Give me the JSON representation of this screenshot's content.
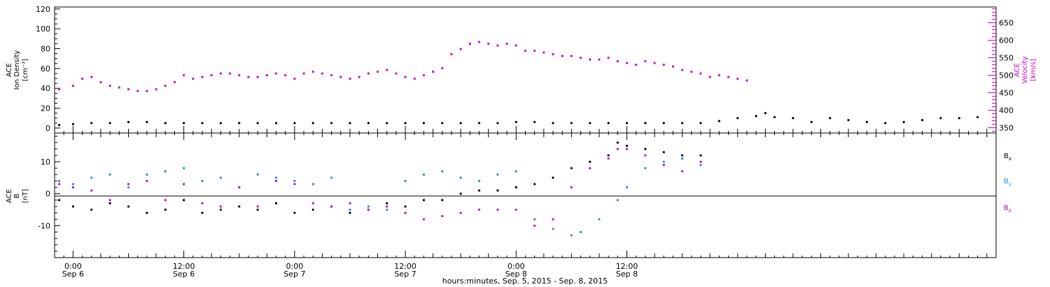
{
  "chart_data": [
    {
      "type": "scatter",
      "panel": "plasma",
      "ylabel_left": [
        "ACE",
        "Ion Density",
        "[cm⁻³]"
      ],
      "ylabel_right": [
        "ACE",
        "Velocity",
        "[km/s]"
      ],
      "left_axis": {
        "range": [
          -5,
          122
        ],
        "ticks": [
          0,
          20,
          40,
          60,
          80,
          100,
          120
        ],
        "color": "#000000"
      },
      "right_axis": {
        "range": [
          335,
          695
        ],
        "ticks": [
          350,
          400,
          450,
          500,
          550,
          600,
          650
        ],
        "color": "#cc00cc"
      },
      "x_range_hours": [
        -2,
        100
      ],
      "series": [
        {
          "axis": "left",
          "color": "#000000",
          "points": [
            [
              -1.5,
              3
            ],
            [
              0,
              4
            ],
            [
              2,
              5
            ],
            [
              4,
              5
            ],
            [
              6,
              6
            ],
            [
              8,
              6
            ],
            [
              10,
              5
            ],
            [
              12,
              5
            ],
            [
              14,
              5
            ],
            [
              16,
              5
            ],
            [
              18,
              5
            ],
            [
              20,
              5
            ],
            [
              22,
              5
            ],
            [
              24,
              5
            ],
            [
              26,
              5
            ],
            [
              28,
              5
            ],
            [
              30,
              5
            ],
            [
              32,
              5
            ],
            [
              34,
              5
            ],
            [
              36,
              5
            ],
            [
              38,
              5
            ],
            [
              40,
              5
            ],
            [
              42,
              5
            ],
            [
              44,
              5
            ],
            [
              46,
              5
            ],
            [
              48,
              6
            ],
            [
              50,
              6
            ],
            [
              52,
              5
            ],
            [
              54,
              5
            ],
            [
              56,
              5
            ],
            [
              58,
              5
            ],
            [
              60,
              5
            ],
            [
              62,
              5
            ],
            [
              64,
              5
            ],
            [
              66,
              5
            ],
            [
              68,
              5
            ],
            [
              70,
              7
            ],
            [
              72,
              10
            ],
            [
              74,
              12
            ],
            [
              75,
              15
            ],
            [
              76,
              11
            ],
            [
              78,
              10
            ],
            [
              80,
              6
            ],
            [
              82,
              10
            ],
            [
              84,
              8
            ],
            [
              86,
              6
            ],
            [
              88,
              5
            ],
            [
              90,
              6
            ],
            [
              92,
              8
            ],
            [
              94,
              10
            ],
            [
              96,
              10
            ],
            [
              98,
              11
            ]
          ]
        },
        {
          "axis": "right",
          "color": "#cc00cc",
          "points": [
            [
              -1.5,
              460
            ],
            [
              0,
              470
            ],
            [
              1,
              490
            ],
            [
              2,
              495
            ],
            [
              3,
              480
            ],
            [
              4,
              470
            ],
            [
              5,
              465
            ],
            [
              6,
              460
            ],
            [
              7,
              455
            ],
            [
              8,
              455
            ],
            [
              9,
              460
            ],
            [
              10,
              470
            ],
            [
              11,
              480
            ],
            [
              12,
              500
            ],
            [
              13,
              490
            ],
            [
              14,
              495
            ],
            [
              15,
              500
            ],
            [
              16,
              505
            ],
            [
              17,
              505
            ],
            [
              18,
              500
            ],
            [
              19,
              495
            ],
            [
              20,
              495
            ],
            [
              21,
              500
            ],
            [
              22,
              505
            ],
            [
              23,
              500
            ],
            [
              24,
              490
            ],
            [
              25,
              505
            ],
            [
              26,
              510
            ],
            [
              27,
              505
            ],
            [
              28,
              500
            ],
            [
              29,
              495
            ],
            [
              30,
              490
            ],
            [
              31,
              495
            ],
            [
              32,
              505
            ],
            [
              33,
              510
            ],
            [
              34,
              515
            ],
            [
              35,
              505
            ],
            [
              36,
              495
            ],
            [
              37,
              490
            ],
            [
              38,
              500
            ],
            [
              39,
              510
            ],
            [
              40,
              520
            ],
            [
              41,
              560
            ],
            [
              42,
              575
            ],
            [
              43,
              590
            ],
            [
              44,
              595
            ],
            [
              45,
              590
            ],
            [
              46,
              585
            ],
            [
              47,
              590
            ],
            [
              48,
              585
            ],
            [
              49,
              570
            ],
            [
              50,
              570
            ],
            [
              51,
              565
            ],
            [
              52,
              560
            ],
            [
              53,
              555
            ],
            [
              54,
              555
            ],
            [
              55,
              550
            ],
            [
              56,
              545
            ],
            [
              57,
              545
            ],
            [
              58,
              550
            ],
            [
              59,
              540
            ],
            [
              60,
              535
            ],
            [
              61,
              530
            ],
            [
              62,
              540
            ],
            [
              63,
              535
            ],
            [
              64,
              530
            ],
            [
              65,
              525
            ],
            [
              66,
              515
            ],
            [
              67,
              510
            ],
            [
              68,
              505
            ],
            [
              69,
              495
            ],
            [
              70,
              500
            ],
            [
              71,
              495
            ],
            [
              72,
              490
            ],
            [
              73,
              485
            ]
          ]
        }
      ]
    },
    {
      "type": "scatter",
      "panel": "magnetic-field",
      "ylabel_left": [
        "ACE",
        "B",
        "[nT]"
      ],
      "left_axis": {
        "range": [
          -20,
          19
        ],
        "ticks": [
          -10,
          0,
          10
        ],
        "color": "#000000"
      },
      "x_range_hours": [
        -2,
        100
      ],
      "x_ticks": [
        {
          "hour": 0,
          "time": "0:00",
          "date": "Sep 6"
        },
        {
          "hour": 12,
          "time": "12:00",
          "date": "Sep 6"
        },
        {
          "hour": 24,
          "time": "0:00",
          "date": "Sep 7"
        },
        {
          "hour": 36,
          "time": "12:00",
          "date": "Sep 7"
        },
        {
          "hour": 48,
          "time": "0:00",
          "date": "Sep 8"
        },
        {
          "hour": 60,
          "time": "12:00",
          "date": "Sep 8"
        }
      ],
      "xlabel": "hours:minutes, Sep.  5, 2015 - Sep.  8, 2015",
      "legend": [
        {
          "label": "B",
          "sub": "x",
          "color": "#000000"
        },
        {
          "label": "B",
          "sub": "y",
          "color": "#1a8ce6"
        },
        {
          "label": "B",
          "sub": "z",
          "color": "#cc00cc"
        }
      ],
      "series": [
        {
          "name": "Bx",
          "color": "#000000",
          "points": [
            [
              -1.5,
              -2
            ],
            [
              0,
              -4
            ],
            [
              2,
              -5
            ],
            [
              4,
              -3
            ],
            [
              6,
              -4
            ],
            [
              8,
              -6
            ],
            [
              10,
              -5
            ],
            [
              12,
              -2
            ],
            [
              14,
              -6
            ],
            [
              16,
              -5
            ],
            [
              18,
              -4
            ],
            [
              20,
              -5
            ],
            [
              22,
              -3
            ],
            [
              24,
              -6
            ],
            [
              26,
              -5
            ],
            [
              28,
              -4
            ],
            [
              30,
              -6
            ],
            [
              32,
              -5
            ],
            [
              34,
              -3
            ],
            [
              36,
              -4
            ],
            [
              38,
              -2
            ],
            [
              40,
              -2
            ],
            [
              42,
              0
            ],
            [
              44,
              1
            ],
            [
              46,
              1
            ],
            [
              48,
              2
            ],
            [
              50,
              3
            ],
            [
              52,
              5
            ],
            [
              54,
              8
            ],
            [
              56,
              10
            ],
            [
              58,
              12
            ],
            [
              59,
              16
            ],
            [
              60,
              15
            ],
            [
              62,
              14
            ],
            [
              64,
              13
            ],
            [
              66,
              12
            ],
            [
              68,
              12
            ]
          ]
        },
        {
          "name": "By",
          "color": "#1a8ce6",
          "points": [
            [
              -1.5,
              4
            ],
            [
              0,
              3
            ],
            [
              2,
              5
            ],
            [
              4,
              6
            ],
            [
              6,
              2
            ],
            [
              8,
              6
            ],
            [
              10,
              7
            ],
            [
              12,
              8
            ],
            [
              14,
              4
            ],
            [
              16,
              5
            ],
            [
              18,
              2
            ],
            [
              20,
              6
            ],
            [
              22,
              5
            ],
            [
              24,
              4
            ],
            [
              26,
              3
            ],
            [
              28,
              5
            ],
            [
              30,
              -5
            ],
            [
              32,
              -4
            ],
            [
              34,
              -5
            ],
            [
              36,
              4
            ],
            [
              38,
              6
            ],
            [
              40,
              7
            ],
            [
              42,
              5
            ],
            [
              44,
              4
            ],
            [
              46,
              6
            ],
            [
              48,
              7
            ],
            [
              50,
              -8
            ],
            [
              52,
              -11
            ],
            [
              54,
              -13
            ],
            [
              55,
              -12
            ],
            [
              57,
              -8
            ],
            [
              59,
              -2
            ],
            [
              60,
              2
            ],
            [
              62,
              8
            ],
            [
              64,
              10
            ],
            [
              66,
              11
            ],
            [
              68,
              9
            ]
          ]
        },
        {
          "name": "Bz",
          "color": "#cc00cc",
          "points": [
            [
              -1.5,
              3
            ],
            [
              0,
              2
            ],
            [
              2,
              1
            ],
            [
              4,
              -2
            ],
            [
              6,
              3
            ],
            [
              8,
              4
            ],
            [
              10,
              -2
            ],
            [
              12,
              3
            ],
            [
              14,
              -3
            ],
            [
              16,
              -4
            ],
            [
              18,
              2
            ],
            [
              20,
              -4
            ],
            [
              22,
              4
            ],
            [
              24,
              3
            ],
            [
              26,
              -3
            ],
            [
              28,
              -4
            ],
            [
              30,
              -3
            ],
            [
              32,
              -5
            ],
            [
              34,
              -4
            ],
            [
              36,
              -6
            ],
            [
              38,
              -8
            ],
            [
              40,
              -7
            ],
            [
              42,
              -6
            ],
            [
              44,
              -5
            ],
            [
              46,
              -5
            ],
            [
              48,
              -5
            ],
            [
              50,
              -10
            ],
            [
              52,
              -8
            ],
            [
              54,
              2
            ],
            [
              56,
              8
            ],
            [
              58,
              11
            ],
            [
              59,
              14
            ],
            [
              60,
              14
            ],
            [
              62,
              12
            ],
            [
              64,
              9
            ],
            [
              66,
              7
            ],
            [
              68,
              10
            ]
          ]
        }
      ]
    }
  ]
}
